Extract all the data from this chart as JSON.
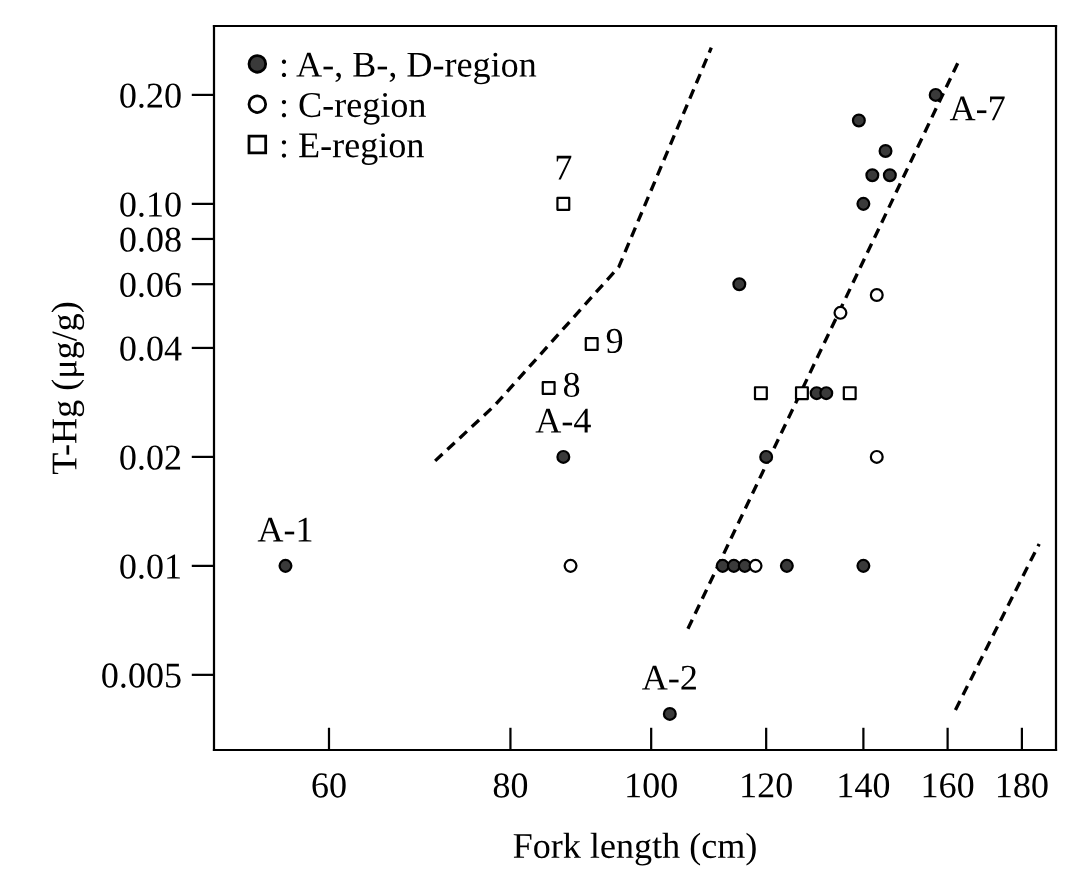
{
  "chart_data": {
    "type": "scatter",
    "xlabel": "Fork length (cm)",
    "ylabel": "T-Hg (μg/g)",
    "log": "xy",
    "xlim": [
      50,
      190
    ],
    "ylim": [
      0.0031,
      0.31
    ],
    "xticks": [
      60,
      80,
      100,
      120,
      140,
      160,
      180
    ],
    "yticks": [
      0.005,
      0.01,
      0.02,
      0.04,
      0.06,
      0.08,
      {
        "value": 0.1,
        "label": "0.10"
      },
      {
        "value": 0.2,
        "label": "0.20"
      }
    ],
    "grid": false,
    "legend": "top left",
    "series": [
      {
        "name": ": A-, B-, D-region",
        "color": "#3a3a3a",
        "marker": "circle",
        "x": [
          56,
          103,
          87,
          120,
          112,
          114,
          116,
          124,
          140,
          157,
          139,
          145,
          142,
          146,
          140,
          115,
          130,
          132
        ],
        "values": [
          0.01,
          0.0039,
          0.02,
          0.02,
          0.01,
          0.01,
          0.01,
          0.01,
          0.01,
          0.2,
          0.17,
          0.14,
          0.12,
          0.12,
          0.1,
          0.06,
          0.03,
          0.03
        ]
      },
      {
        "name": ": C-region",
        "color": "#ffffff",
        "marker": "circle",
        "x": [
          88,
          118,
          143,
          143,
          135
        ],
        "values": [
          0.01,
          0.01,
          0.02,
          0.056,
          0.05
        ]
      },
      {
        "name": ": E-region",
        "color": "#ffffff",
        "marker": "square",
        "x": [
          87,
          91,
          85,
          119,
          127,
          137
        ],
        "values": [
          0.1,
          0.041,
          0.031,
          0.03,
          0.03,
          0.03
        ]
      },
      {
        "type": "line",
        "color": "#000000",
        "line_style": "dashed",
        "x": [
          106,
          163
        ],
        "values": [
          0.0067,
          0.25
        ]
      },
      {
        "type": "line",
        "color": "#000000",
        "line_style": "dashed",
        "x": [
          71,
          78,
          95,
          110
        ],
        "values": [
          0.0195,
          0.0277,
          0.067,
          0.27
        ]
      },
      {
        "type": "line",
        "color": "#000000",
        "line_style": "dashed",
        "x": [
          162,
          185
        ],
        "values": [
          0.004,
          0.0115
        ]
      }
    ],
    "annotations": [
      {
        "text": "A-1",
        "x": 56,
        "y": 0.01
      },
      {
        "text": "A-2",
        "x": 103,
        "y": 0.0039
      },
      {
        "text": "A-4",
        "x": 87,
        "y": 0.02
      },
      {
        "text": "A-7",
        "x": 157,
        "y": 0.2
      },
      {
        "text": "7",
        "x": 87,
        "y": 0.1
      },
      {
        "text": "8",
        "x": 85,
        "y": 0.031
      },
      {
        "text": "9",
        "x": 91,
        "y": 0.041
      }
    ]
  }
}
